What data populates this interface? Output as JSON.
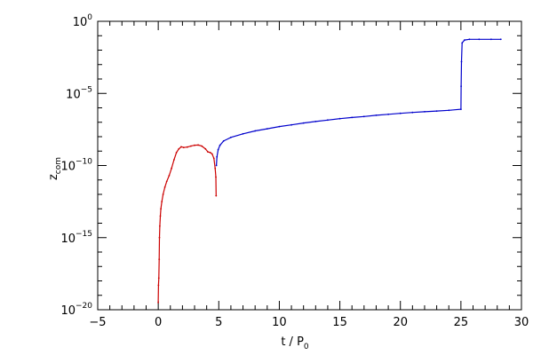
{
  "chart_data": {
    "type": "scatter",
    "title": "",
    "xlabel": "t / P",
    "xlabel_sub": "0",
    "ylabel": "z",
    "ylabel_sub": "com",
    "xlim": [
      -5,
      30
    ],
    "ylim_log10": [
      -20,
      0
    ],
    "yscale": "log",
    "x_ticks": [
      {
        "value": -5,
        "label": "−5"
      },
      {
        "value": 0,
        "label": "0"
      },
      {
        "value": 5,
        "label": "5"
      },
      {
        "value": 10,
        "label": "10"
      },
      {
        "value": 15,
        "label": "15"
      },
      {
        "value": 20,
        "label": "20"
      },
      {
        "value": 25,
        "label": "25"
      },
      {
        "value": 30,
        "label": "30"
      }
    ],
    "y_ticks": [
      {
        "exp": -20,
        "base": "10",
        "sup": "−20"
      },
      {
        "exp": -15,
        "base": "10",
        "sup": "−15"
      },
      {
        "exp": -10,
        "base": "10",
        "sup": "−10"
      },
      {
        "exp": -5,
        "base": "10",
        "sup": "−5"
      },
      {
        "exp": 0,
        "base": "10",
        "sup": "0"
      }
    ],
    "grid": false,
    "legend": "none",
    "series": [
      {
        "color": "#cc0000",
        "points_log10": [
          [
            0.0,
            -19.5
          ],
          [
            0.02,
            -18.3
          ],
          [
            0.05,
            -17.8
          ],
          [
            0.08,
            -16.5
          ],
          [
            0.1,
            -15.0
          ],
          [
            0.13,
            -14.2
          ],
          [
            0.17,
            -13.5
          ],
          [
            0.22,
            -13.0
          ],
          [
            0.3,
            -12.5
          ],
          [
            0.4,
            -12.0
          ],
          [
            0.55,
            -11.5
          ],
          [
            0.7,
            -11.1
          ],
          [
            0.9,
            -10.7
          ],
          [
            1.1,
            -10.2
          ],
          [
            1.3,
            -9.6
          ],
          [
            1.5,
            -9.1
          ],
          [
            1.7,
            -8.85
          ],
          [
            1.9,
            -8.7
          ],
          [
            2.1,
            -8.75
          ],
          [
            2.4,
            -8.72
          ],
          [
            2.7,
            -8.65
          ],
          [
            3.0,
            -8.6
          ],
          [
            3.3,
            -8.58
          ],
          [
            3.6,
            -8.65
          ],
          [
            3.9,
            -8.85
          ],
          [
            4.1,
            -9.05
          ],
          [
            4.3,
            -9.1
          ],
          [
            4.45,
            -9.2
          ],
          [
            4.6,
            -9.5
          ],
          [
            4.7,
            -10.2
          ],
          [
            4.76,
            -10.8
          ],
          [
            4.78,
            -12.1
          ]
        ]
      },
      {
        "color": "#0000cc",
        "points_log10": [
          [
            4.8,
            -10.0
          ],
          [
            4.85,
            -9.4
          ],
          [
            4.95,
            -8.9
          ],
          [
            5.1,
            -8.6
          ],
          [
            5.4,
            -8.3
          ],
          [
            6.0,
            -8.05
          ],
          [
            7.0,
            -7.8
          ],
          [
            8.0,
            -7.6
          ],
          [
            9.0,
            -7.45
          ],
          [
            10.0,
            -7.3
          ],
          [
            11.0,
            -7.18
          ],
          [
            12.0,
            -7.05
          ],
          [
            13.0,
            -6.95
          ],
          [
            14.0,
            -6.85
          ],
          [
            15.0,
            -6.75
          ],
          [
            16.0,
            -6.67
          ],
          [
            17.0,
            -6.6
          ],
          [
            18.0,
            -6.52
          ],
          [
            19.0,
            -6.45
          ],
          [
            20.0,
            -6.38
          ],
          [
            21.0,
            -6.32
          ],
          [
            22.0,
            -6.27
          ],
          [
            23.0,
            -6.22
          ],
          [
            24.0,
            -6.17
          ],
          [
            25.0,
            -6.1
          ],
          [
            25.02,
            -4.5
          ],
          [
            25.05,
            -2.8
          ],
          [
            25.1,
            -1.5
          ],
          [
            25.3,
            -1.3
          ],
          [
            25.7,
            -1.25
          ],
          [
            26.5,
            -1.25
          ],
          [
            27.5,
            -1.25
          ],
          [
            28.3,
            -1.25
          ]
        ]
      }
    ]
  }
}
